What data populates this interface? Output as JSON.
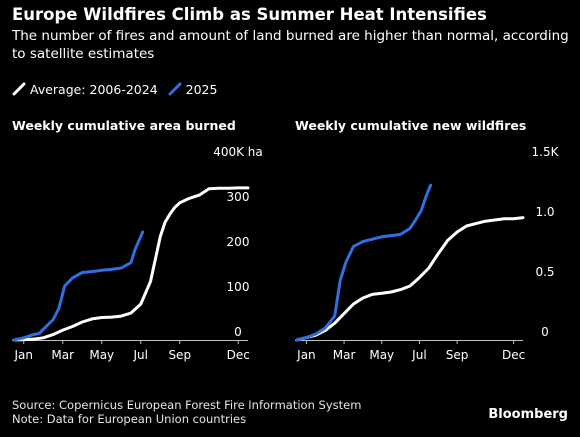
{
  "header": {
    "title": "Europe Wildfires Climb as Summer Heat Intensifies",
    "subtitle": "The number of fires and amount of land burned are higher than normal, according to satellite estimates"
  },
  "legend": [
    {
      "label": "Average: 2006-2024",
      "color": "#ffffff"
    },
    {
      "label": "2025",
      "color": "#2f6fe0"
    }
  ],
  "chart_data": [
    {
      "type": "line",
      "title": "Weekly cumulative area burned",
      "x_unit": "month",
      "xlim": [
        0,
        12
      ],
      "ylim": [
        0,
        400
      ],
      "x_ticks": [
        {
          "value": 0.5,
          "label": "Jan"
        },
        {
          "value": 2.5,
          "label": "Mar"
        },
        {
          "value": 4.5,
          "label": "May"
        },
        {
          "value": 6.5,
          "label": "Jul"
        },
        {
          "value": 8.5,
          "label": "Sep"
        },
        {
          "value": 11.5,
          "label": "Dec"
        }
      ],
      "y_ticks": [
        {
          "value": 0,
          "label": "0"
        },
        {
          "value": 100,
          "label": "100"
        },
        {
          "value": 200,
          "label": "200"
        },
        {
          "value": 300,
          "label": "300"
        },
        {
          "value": 400,
          "label": "400K ha"
        }
      ],
      "series": [
        {
          "name": "Average: 2006-2024",
          "color": "#ffffff",
          "x": [
            0,
            0.5,
            1,
            1.5,
            2,
            2.5,
            3,
            3.5,
            4,
            4.5,
            5,
            5.5,
            6,
            6.5,
            7,
            7.25,
            7.5,
            7.75,
            8,
            8.25,
            8.5,
            8.75,
            9,
            9.5,
            10,
            10.5,
            11,
            11.5,
            12
          ],
          "values": [
            0,
            1,
            2,
            5,
            12,
            22,
            30,
            40,
            47,
            50,
            51,
            53,
            60,
            80,
            130,
            180,
            230,
            262,
            280,
            295,
            305,
            310,
            315,
            322,
            336,
            337,
            337,
            338,
            338
          ]
        },
        {
          "name": "2025",
          "color": "#2f6fe0",
          "x": [
            0,
            0.5,
            1,
            1.3,
            1.6,
            2,
            2.3,
            2.6,
            3,
            3.5,
            4,
            4.5,
            5,
            5.5,
            6,
            6.2,
            6.4,
            6.6
          ],
          "values": [
            0,
            5,
            12,
            15,
            28,
            45,
            70,
            120,
            138,
            150,
            152,
            155,
            157,
            160,
            172,
            200,
            220,
            240
          ]
        }
      ]
    },
    {
      "type": "line",
      "title": "Weekly cumulative new wildfires",
      "x_unit": "month",
      "xlim": [
        0,
        12
      ],
      "ylim": [
        0,
        1.5
      ],
      "x_ticks": [
        {
          "value": 0.5,
          "label": "Jan"
        },
        {
          "value": 2.5,
          "label": "Mar"
        },
        {
          "value": 4.5,
          "label": "May"
        },
        {
          "value": 6.5,
          "label": "Jul"
        },
        {
          "value": 8.5,
          "label": "Sep"
        },
        {
          "value": 11.5,
          "label": "Dec"
        }
      ],
      "y_ticks": [
        {
          "value": 0,
          "label": "0"
        },
        {
          "value": 0.5,
          "label": "0.5"
        },
        {
          "value": 1.0,
          "label": "1.0"
        },
        {
          "value": 1.5,
          "label": "1.5K"
        }
      ],
      "series": [
        {
          "name": "Average: 2006-2024",
          "color": "#ffffff",
          "x": [
            0,
            0.5,
            1,
            1.5,
            2,
            2.5,
            3,
            3.5,
            4,
            4.5,
            5,
            5.5,
            6,
            6.5,
            7,
            7.5,
            8,
            8.5,
            9,
            9.5,
            10,
            10.5,
            11,
            11.5,
            12
          ],
          "values": [
            0,
            0.02,
            0.04,
            0.08,
            0.14,
            0.22,
            0.3,
            0.35,
            0.38,
            0.39,
            0.4,
            0.42,
            0.45,
            0.52,
            0.6,
            0.72,
            0.83,
            0.9,
            0.95,
            0.97,
            0.99,
            1.0,
            1.01,
            1.01,
            1.02
          ]
        },
        {
          "name": "2025",
          "color": "#2f6fe0",
          "x": [
            0,
            0.5,
            1,
            1.5,
            2,
            2.3,
            2.6,
            3,
            3.5,
            4,
            4.5,
            5,
            5.5,
            6,
            6.3,
            6.6,
            6.9,
            7.1
          ],
          "values": [
            0,
            0.02,
            0.05,
            0.1,
            0.2,
            0.5,
            0.65,
            0.78,
            0.82,
            0.84,
            0.86,
            0.87,
            0.88,
            0.93,
            1.0,
            1.08,
            1.22,
            1.29
          ]
        }
      ]
    }
  ],
  "footer": {
    "source": "Source: Copernicus European Forest Fire Information System",
    "note": "Note: Data for European Union countries",
    "brand": "Bloomberg"
  }
}
